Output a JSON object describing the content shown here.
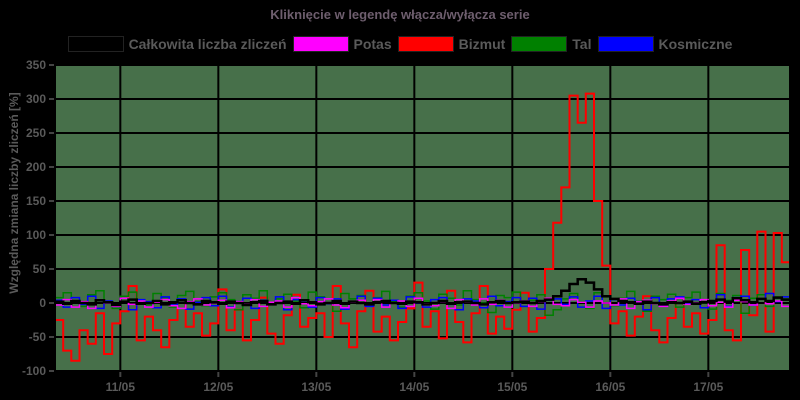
{
  "title": "Kliknięcie w legendę włącza/wyłącza serie",
  "colors": {
    "outer_background": "#000000",
    "plot_background": "#47704a",
    "gridline": "#000000",
    "title_text": "#6e5e6e",
    "axis_text": "#5a5a5a",
    "tick_mark": "#444444"
  },
  "legend": {
    "items": [
      {
        "label": "Całkowita liczba zliczeń",
        "color": "#000000"
      },
      {
        "label": "Potas",
        "color": "#ff00ff"
      },
      {
        "label": "Bizmut",
        "color": "#ff0000"
      },
      {
        "label": "Tal",
        "color": "#008000"
      },
      {
        "label": "Kosmiczne",
        "color": "#0000ff"
      }
    ]
  },
  "chart_data": {
    "type": "line",
    "step": true,
    "title": "Kliknięcie w legendę włącza/wyłącza serie",
    "ylabel": "Względna zmiana liczby zliczeń [%]",
    "xlabel": "",
    "ylim": [
      -100,
      350
    ],
    "grid": true,
    "legend_position": "top",
    "y_ticks": [
      350,
      300,
      250,
      200,
      150,
      100,
      50,
      0,
      -50,
      -100
    ],
    "x_tick_labels": [
      "11/05",
      "12/05",
      "13/05",
      "14/05",
      "15/05",
      "16/05",
      "17/05"
    ],
    "x_tick_points": [
      8,
      20,
      32,
      44,
      56,
      68,
      80
    ],
    "points_total": 90,
    "hours_per_point": 2,
    "series": [
      {
        "name": "Bizmut",
        "color": "#ff0000",
        "width": 2,
        "values": [
          -25,
          -70,
          -85,
          -40,
          -60,
          -15,
          -75,
          -30,
          -12,
          25,
          -55,
          -20,
          -40,
          -65,
          -25,
          5,
          -35,
          -15,
          -48,
          -30,
          20,
          -40,
          -10,
          -55,
          -25,
          8,
          -45,
          -60,
          -18,
          12,
          -35,
          -22,
          -15,
          -50,
          25,
          -30,
          -65,
          -12,
          18,
          -42,
          -20,
          -55,
          -28,
          -8,
          30,
          -35,
          -12,
          -52,
          18,
          -28,
          -58,
          -15,
          25,
          -45,
          -20,
          -38,
          -10,
          15,
          -42,
          -22,
          50,
          118,
          170,
          305,
          265,
          308,
          150,
          55,
          -30,
          -12,
          -48,
          -20,
          10,
          -40,
          -58,
          -22,
          8,
          -35,
          -15,
          -45,
          -25,
          85,
          -40,
          -55,
          78,
          -18,
          105,
          -42,
          103,
          60
        ]
      },
      {
        "name": "Tal",
        "color": "#008000",
        "width": 1.5,
        "values": [
          8,
          15,
          3,
          -5,
          12,
          18,
          0,
          -8,
          10,
          16,
          4,
          -3,
          14,
          8,
          -6,
          11,
          17,
          2,
          -4,
          9,
          15,
          5,
          -10,
          12,
          7,
          18,
          -2,
          6,
          13,
          3,
          -7,
          16,
          9,
          0,
          -12,
          14,
          6,
          11,
          -4,
          8,
          17,
          2,
          -6,
          10,
          15,
          3,
          -9,
          13,
          7,
          -3,
          18,
          5,
          0,
          -14,
          11,
          8,
          16,
          -5,
          4,
          12,
          -18,
          -10,
          6,
          14,
          2,
          -8,
          15,
          9,
          -4,
          7,
          17,
          3,
          -12,
          10,
          5,
          13,
          -6,
          8,
          16,
          0,
          -9,
          14,
          4,
          11,
          -15,
          7,
          12,
          -5,
          9,
          6
        ]
      },
      {
        "name": "Kosmiczne",
        "color": "#0000ff",
        "width": 1.5,
        "values": [
          4,
          -6,
          8,
          -2,
          10,
          -8,
          3,
          -5,
          7,
          -10,
          5,
          2,
          -7,
          9,
          -3,
          6,
          -9,
          1,
          8,
          -4,
          10,
          -6,
          2,
          7,
          -8,
          4,
          -2,
          9,
          -10,
          5,
          3,
          -6,
          8,
          -1,
          6,
          -9,
          2,
          10,
          -5,
          7,
          -3,
          4,
          -8,
          9,
          0,
          -6,
          5,
          8,
          -2,
          -10,
          6,
          3,
          -7,
          10,
          -4,
          2,
          8,
          -5,
          7,
          -9,
          4,
          6,
          -2,
          9,
          -6,
          3,
          10,
          -8,
          5,
          -3,
          7,
          2,
          -10,
          8,
          -4,
          6,
          9,
          -1,
          5,
          -7,
          3,
          12,
          -5,
          8,
          10,
          -3,
          6,
          14,
          2,
          9
        ]
      },
      {
        "name": "Potas",
        "color": "#ff00ff",
        "width": 1.5,
        "values": [
          -3,
          5,
          -6,
          2,
          -8,
          4,
          0,
          -5,
          7,
          -2,
          3,
          -6,
          1,
          5,
          -4,
          -8,
          2,
          6,
          -3,
          0,
          4,
          -7,
          2,
          -2,
          5,
          -5,
          1,
          3,
          -6,
          8,
          -1,
          -4,
          2,
          6,
          -3,
          -7,
          1,
          4,
          -2,
          5,
          -6,
          0,
          3,
          -5,
          7,
          -1,
          -4,
          2,
          -8,
          5,
          1,
          -3,
          6,
          -2,
          4,
          -6,
          0,
          3,
          -5,
          2,
          7,
          -2,
          -4,
          5,
          1,
          -6,
          3,
          0,
          -3,
          6,
          -8,
          2,
          4,
          -1,
          -5,
          3,
          7,
          -2,
          0,
          5,
          -4,
          1,
          -6,
          4,
          2,
          -3,
          6,
          -1,
          3,
          -5
        ]
      },
      {
        "name": "Całkowita liczba zliczeń",
        "color": "#000000",
        "width": 2.5,
        "values": [
          2,
          -1,
          3,
          0,
          -2,
          4,
          1,
          -3,
          2,
          5,
          -1,
          0,
          3,
          -2,
          1,
          4,
          0,
          -2,
          3,
          1,
          -1,
          2,
          0,
          -3,
          1,
          3,
          -2,
          0,
          2,
          -1,
          4,
          1,
          -2,
          0,
          3,
          -1,
          2,
          0,
          -2,
          1,
          3,
          0,
          -1,
          2,
          1,
          -2,
          0,
          3,
          -1,
          1,
          2,
          0,
          -2,
          1,
          3,
          0,
          1,
          2,
          0,
          3,
          5,
          10,
          18,
          28,
          35,
          30,
          20,
          10,
          6,
          3,
          1,
          -1,
          2,
          0,
          -2,
          1,
          0,
          2,
          -1,
          1,
          3,
          5,
          2,
          7,
          4,
          1,
          6,
          3,
          8,
          5
        ]
      }
    ]
  }
}
